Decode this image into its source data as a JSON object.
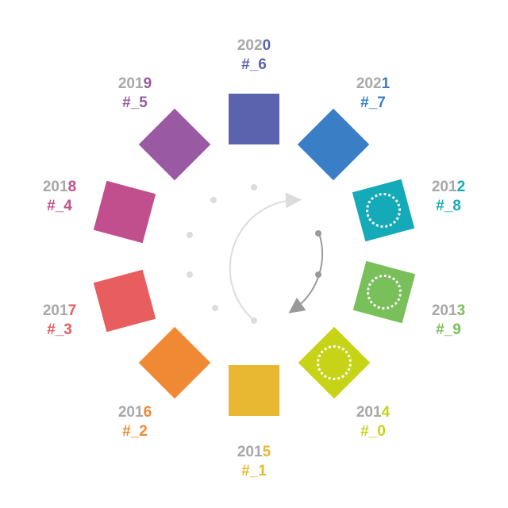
{
  "items": [
    {
      "id": "2020",
      "year_prefix": "202",
      "year_last": "0",
      "code": "#_6",
      "color": "#5b62ae",
      "dotted": false
    },
    {
      "id": "2021",
      "year_prefix": "202",
      "year_last": "1",
      "code": "#_7",
      "color": "#3a7fc6",
      "dotted": false
    },
    {
      "id": "2012",
      "year_prefix": "201",
      "year_last": "2",
      "code": "#_8",
      "color": "#15aab8",
      "dotted": true
    },
    {
      "id": "2013",
      "year_prefix": "201",
      "year_last": "3",
      "code": "#_9",
      "color": "#79bf5a",
      "dotted": true
    },
    {
      "id": "2014",
      "year_prefix": "201",
      "year_last": "4",
      "code": "#_0",
      "color": "#c6d317",
      "dotted": true
    },
    {
      "id": "2015",
      "year_prefix": "201",
      "year_last": "5",
      "code": "#_1",
      "color": "#e8b832",
      "dotted": false
    },
    {
      "id": "2016",
      "year_prefix": "201",
      "year_last": "6",
      "code": "#_2",
      "color": "#f08933",
      "dotted": false
    },
    {
      "id": "2017",
      "year_prefix": "201",
      "year_last": "7",
      "code": "#_3",
      "color": "#e85d5e",
      "dotted": false
    },
    {
      "id": "2018",
      "year_prefix": "201",
      "year_last": "8",
      "code": "#_4",
      "color": "#c24f8d",
      "dotted": false
    },
    {
      "id": "2019",
      "year_prefix": "201",
      "year_last": "9",
      "code": "#_5",
      "color": "#9a5aa3",
      "dotted": false
    }
  ],
  "base_text_color": "#a8a8a8",
  "arrow_colors": {
    "light": "#dcdcdc",
    "dark": "#9a9a9a"
  }
}
